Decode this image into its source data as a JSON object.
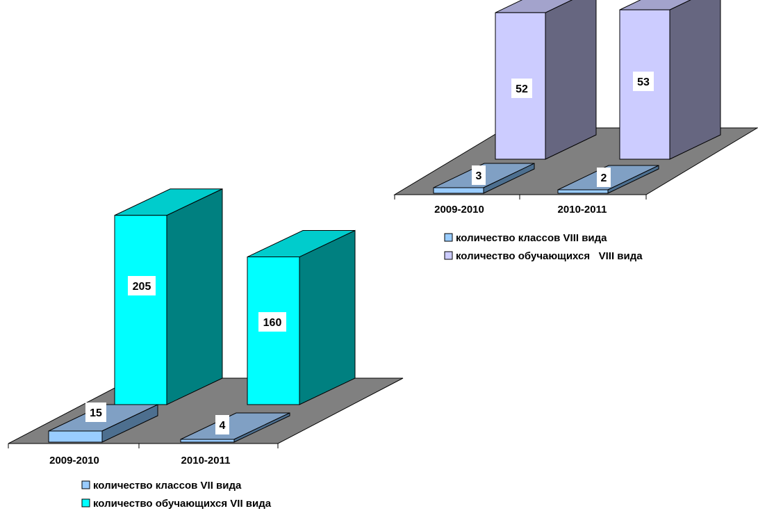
{
  "chart_data": [
    {
      "type": "bar",
      "categories": [
        "2009-2010",
        "2010-2011"
      ],
      "ylim": [
        0,
        220
      ],
      "series": [
        {
          "name": "количество классов VII вида",
          "values": [
            15,
            4
          ],
          "color": "#99CCFF"
        },
        {
          "name": "количество обучающихся VII вида",
          "values": [
            205,
            160
          ],
          "color": "#00FFFF"
        }
      ],
      "data_labels": [
        [
          "15",
          "4"
        ],
        [
          "205",
          "160"
        ]
      ]
    },
    {
      "type": "bar",
      "categories": [
        "2009-2010",
        "2010-2011"
      ],
      "ylim": [
        0,
        55
      ],
      "series": [
        {
          "name": "количество классов VIII вида",
          "values": [
            3,
            2
          ],
          "color": "#99CCFF"
        },
        {
          "name": "количество обучающихся   VIII вида",
          "values": [
            52,
            53
          ],
          "color": "#CCCCFF"
        }
      ],
      "data_labels": [
        [
          "3",
          "2"
        ],
        [
          "52",
          "53"
        ]
      ]
    }
  ]
}
